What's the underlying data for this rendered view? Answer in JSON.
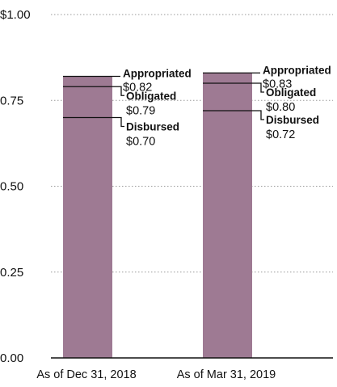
{
  "chart_data": {
    "type": "bar",
    "title": "",
    "xlabel": "",
    "ylabel": "",
    "ylim": [
      0,
      1.0
    ],
    "yticks": [
      {
        "value": 0.0,
        "label": "0.00"
      },
      {
        "value": 0.25,
        "label": "0.25"
      },
      {
        "value": 0.5,
        "label": "0.50"
      },
      {
        "value": 0.75,
        "label": "0.75"
      },
      {
        "value": 1.0,
        "label": "$1.00"
      }
    ],
    "grid": true,
    "categories": [
      "As of Dec 31, 2018",
      "As of Mar 31, 2019"
    ],
    "series": [
      {
        "name": "Appropriated",
        "values": [
          0.82,
          0.83
        ]
      },
      {
        "name": "Obligated",
        "values": [
          0.79,
          0.8
        ]
      },
      {
        "name": "Disbursed",
        "values": [
          0.7,
          0.72
        ]
      }
    ],
    "annotations": [
      [
        {
          "label": "Appropriated",
          "value_label": "$0.82"
        },
        {
          "label": "Obligated",
          "value_label": "$0.79"
        },
        {
          "label": "Disbursed",
          "value_label": "$0.70"
        }
      ],
      [
        {
          "label": "Appropriated",
          "value_label": "$0.83"
        },
        {
          "label": "Obligated",
          "value_label": "$0.80"
        },
        {
          "label": "Disbursed",
          "value_label": "$0.72"
        }
      ]
    ],
    "colors": {
      "bar": "#9e7a93",
      "line": "#111111",
      "grid": "#9a9a9a"
    }
  }
}
